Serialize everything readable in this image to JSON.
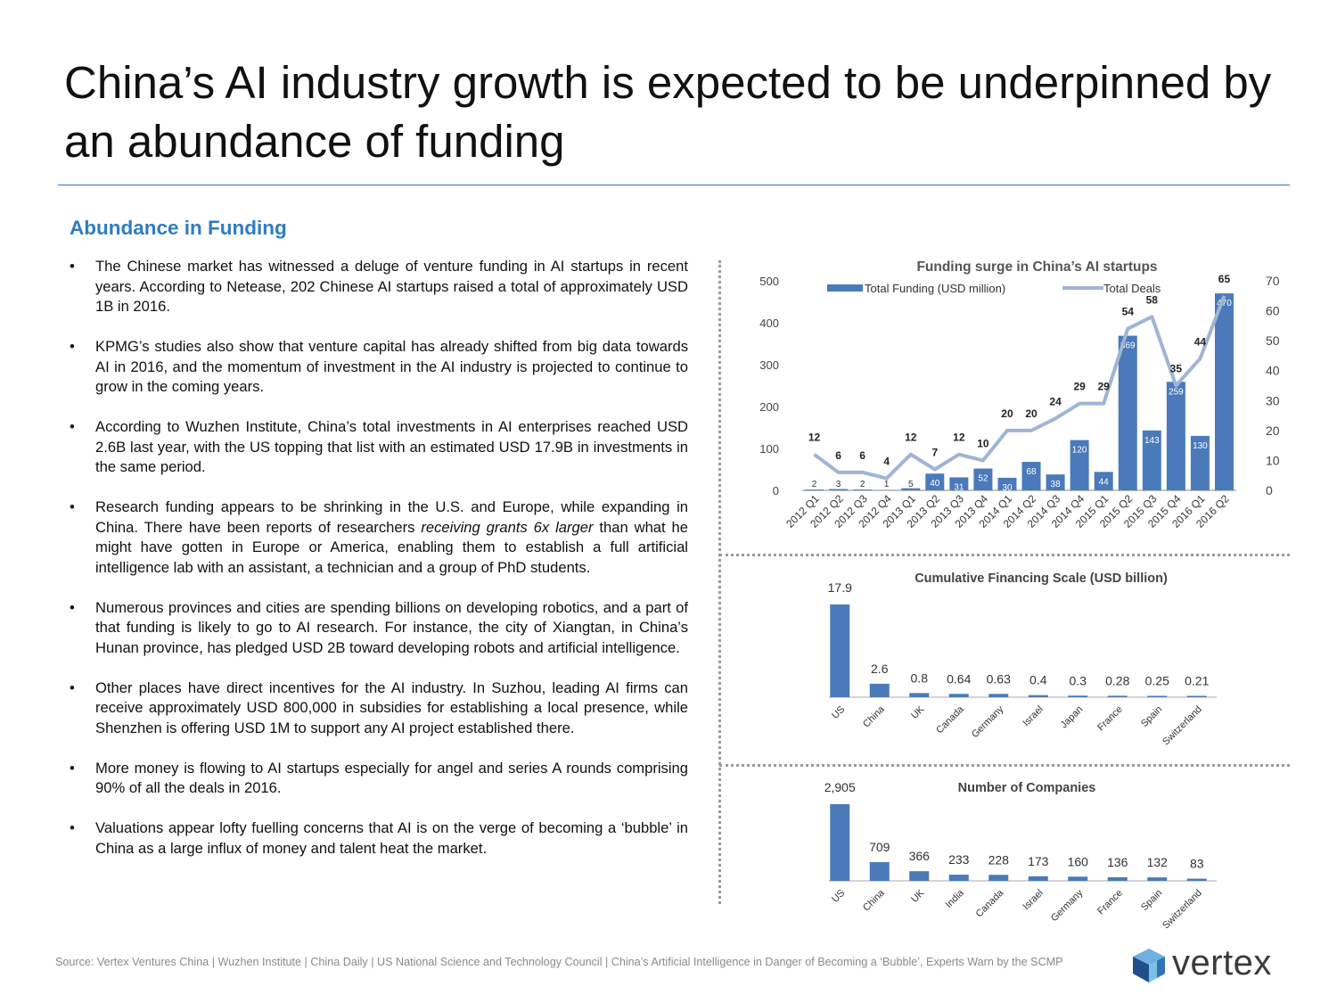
{
  "title": "China’s AI industry growth is expected to be underpinned by an abundance of funding",
  "section_heading": "Abundance in Funding",
  "bullets": [
    {
      "pre": "The Chinese market has witnessed a deluge of venture funding in AI startups in recent years. According to Netease, 202 Chinese AI startups raised a total of approximately USD 1B in 2016.",
      "em": "",
      "post": ""
    },
    {
      "pre": "KPMG’s studies also show that venture capital has already shifted from big data towards AI in 2016, and the momentum of investment in the AI industry is projected to continue to grow in the coming years.",
      "em": "",
      "post": ""
    },
    {
      "pre": "According to Wuzhen Institute, China’s total investments in AI enterprises reached USD 2.6B last year, with the US topping that list with an estimated USD 17.9B in investments in the same period.",
      "em": "",
      "post": ""
    },
    {
      "pre": "Research funding appears to be shrinking in the U.S. and Europe, while expanding in China. There have been reports of researchers ",
      "em": "receiving grants 6x larger",
      "post": " than what he might have gotten in Europe or America, enabling them to establish a full artificial intelligence lab with an assistant, a technician and a group of PhD students."
    },
    {
      "pre": "Numerous provinces and cities are spending billions on developing robotics, and a part of that funding is likely to go to AI research. For instance, the city of Xiangtan, in China’s Hunan province, has pledged USD 2B toward developing robots and artificial intelligence.",
      "em": "",
      "post": ""
    },
    {
      "pre": "Other places have direct incentives for the AI industry. In Suzhou, leading AI firms can receive approximately USD 800,000 in subsidies for establishing a local presence, while Shenzhen is offering USD 1M to support any AI project established there.",
      "em": "",
      "post": ""
    },
    {
      "pre": "More money is flowing to AI startups especially for angel and series A rounds comprising 90% of all the deals in 2016.",
      "em": "",
      "post": ""
    },
    {
      "pre": "Valuations appear lofty fuelling concerns that AI is on the verge of becoming a ‘bubble’ in China as a large influx of money and talent heat the market.",
      "em": "",
      "post": ""
    }
  ],
  "bullet_symbol": "•",
  "source": "Source: Vertex Ventures China | Wuzhen Institute | China Daily | US National Science and Technology Council | China’s Artificial Intelligence  in Danger of Becoming a ‘Bubble’, Experts Warn by the SCMP",
  "logo": {
    "text": "vertex",
    "icon": "vertex-cube-icon"
  },
  "colors": {
    "bar": "#4a7ab9",
    "line": "#9fb4d6",
    "heading": "#2e7cc3",
    "rule": "#2f74b5"
  },
  "chart_data": [
    {
      "type": "bar",
      "title": "Funding surge in China’s AI startups",
      "categories": [
        "2012 Q1",
        "2012 Q2",
        "2012 Q3",
        "2012 Q4",
        "2013 Q1",
        "2013 Q2",
        "2013 Q3",
        "2013 Q4",
        "2014 Q1",
        "2014 Q2",
        "2014 Q3",
        "2014 Q4",
        "2015 Q1",
        "2015 Q2",
        "2015 Q3",
        "2015 Q4",
        "2016 Q1",
        "2016 Q2"
      ],
      "series": [
        {
          "name": "Total Funding (USD million)",
          "type": "bar",
          "axis": "left",
          "values": [
            2,
            3,
            2,
            1,
            5,
            40,
            31,
            52,
            30,
            68,
            38,
            120,
            44,
            369,
            143,
            259,
            130,
            470
          ]
        },
        {
          "name": "Total Deals",
          "type": "line",
          "axis": "right",
          "values": [
            12,
            6,
            6,
            4,
            12,
            7,
            12,
            10,
            20,
            20,
            24,
            29,
            29,
            54,
            58,
            35,
            44,
            65
          ]
        }
      ],
      "ylim": [
        0,
        500
      ],
      "yticks": [
        0,
        100,
        200,
        300,
        400,
        500
      ],
      "y2lim": [
        0,
        70
      ],
      "y2ticks": [
        0,
        10,
        20,
        30,
        40,
        50,
        60,
        70
      ],
      "legend": "top"
    },
    {
      "type": "bar",
      "title": "Cumulative Financing Scale (USD billion)",
      "categories": [
        "US",
        "China",
        "UK",
        "Canada",
        "Germany",
        "Israel",
        "Japan",
        "France",
        "Spain",
        "Switzerland"
      ],
      "values": [
        17.9,
        2.6,
        0.8,
        0.64,
        0.63,
        0.4,
        0.3,
        0.28,
        0.25,
        0.21
      ],
      "labels": [
        "17.9",
        "2.6",
        "0.8",
        "0.64",
        "0.63",
        "0.4",
        "0.3",
        "0.28",
        "0.25",
        "0.21"
      ]
    },
    {
      "type": "bar",
      "title": "Number of Companies",
      "categories": [
        "US",
        "China",
        "UK",
        "India",
        "Canada",
        "Israel",
        "Germany",
        "France",
        "Spain",
        "Switzerland"
      ],
      "values": [
        2905,
        709,
        366,
        233,
        228,
        173,
        160,
        136,
        132,
        83
      ],
      "labels": [
        "2,905",
        "709",
        "366",
        "233",
        "228",
        "173",
        "160",
        "136",
        "132",
        "83"
      ]
    }
  ]
}
